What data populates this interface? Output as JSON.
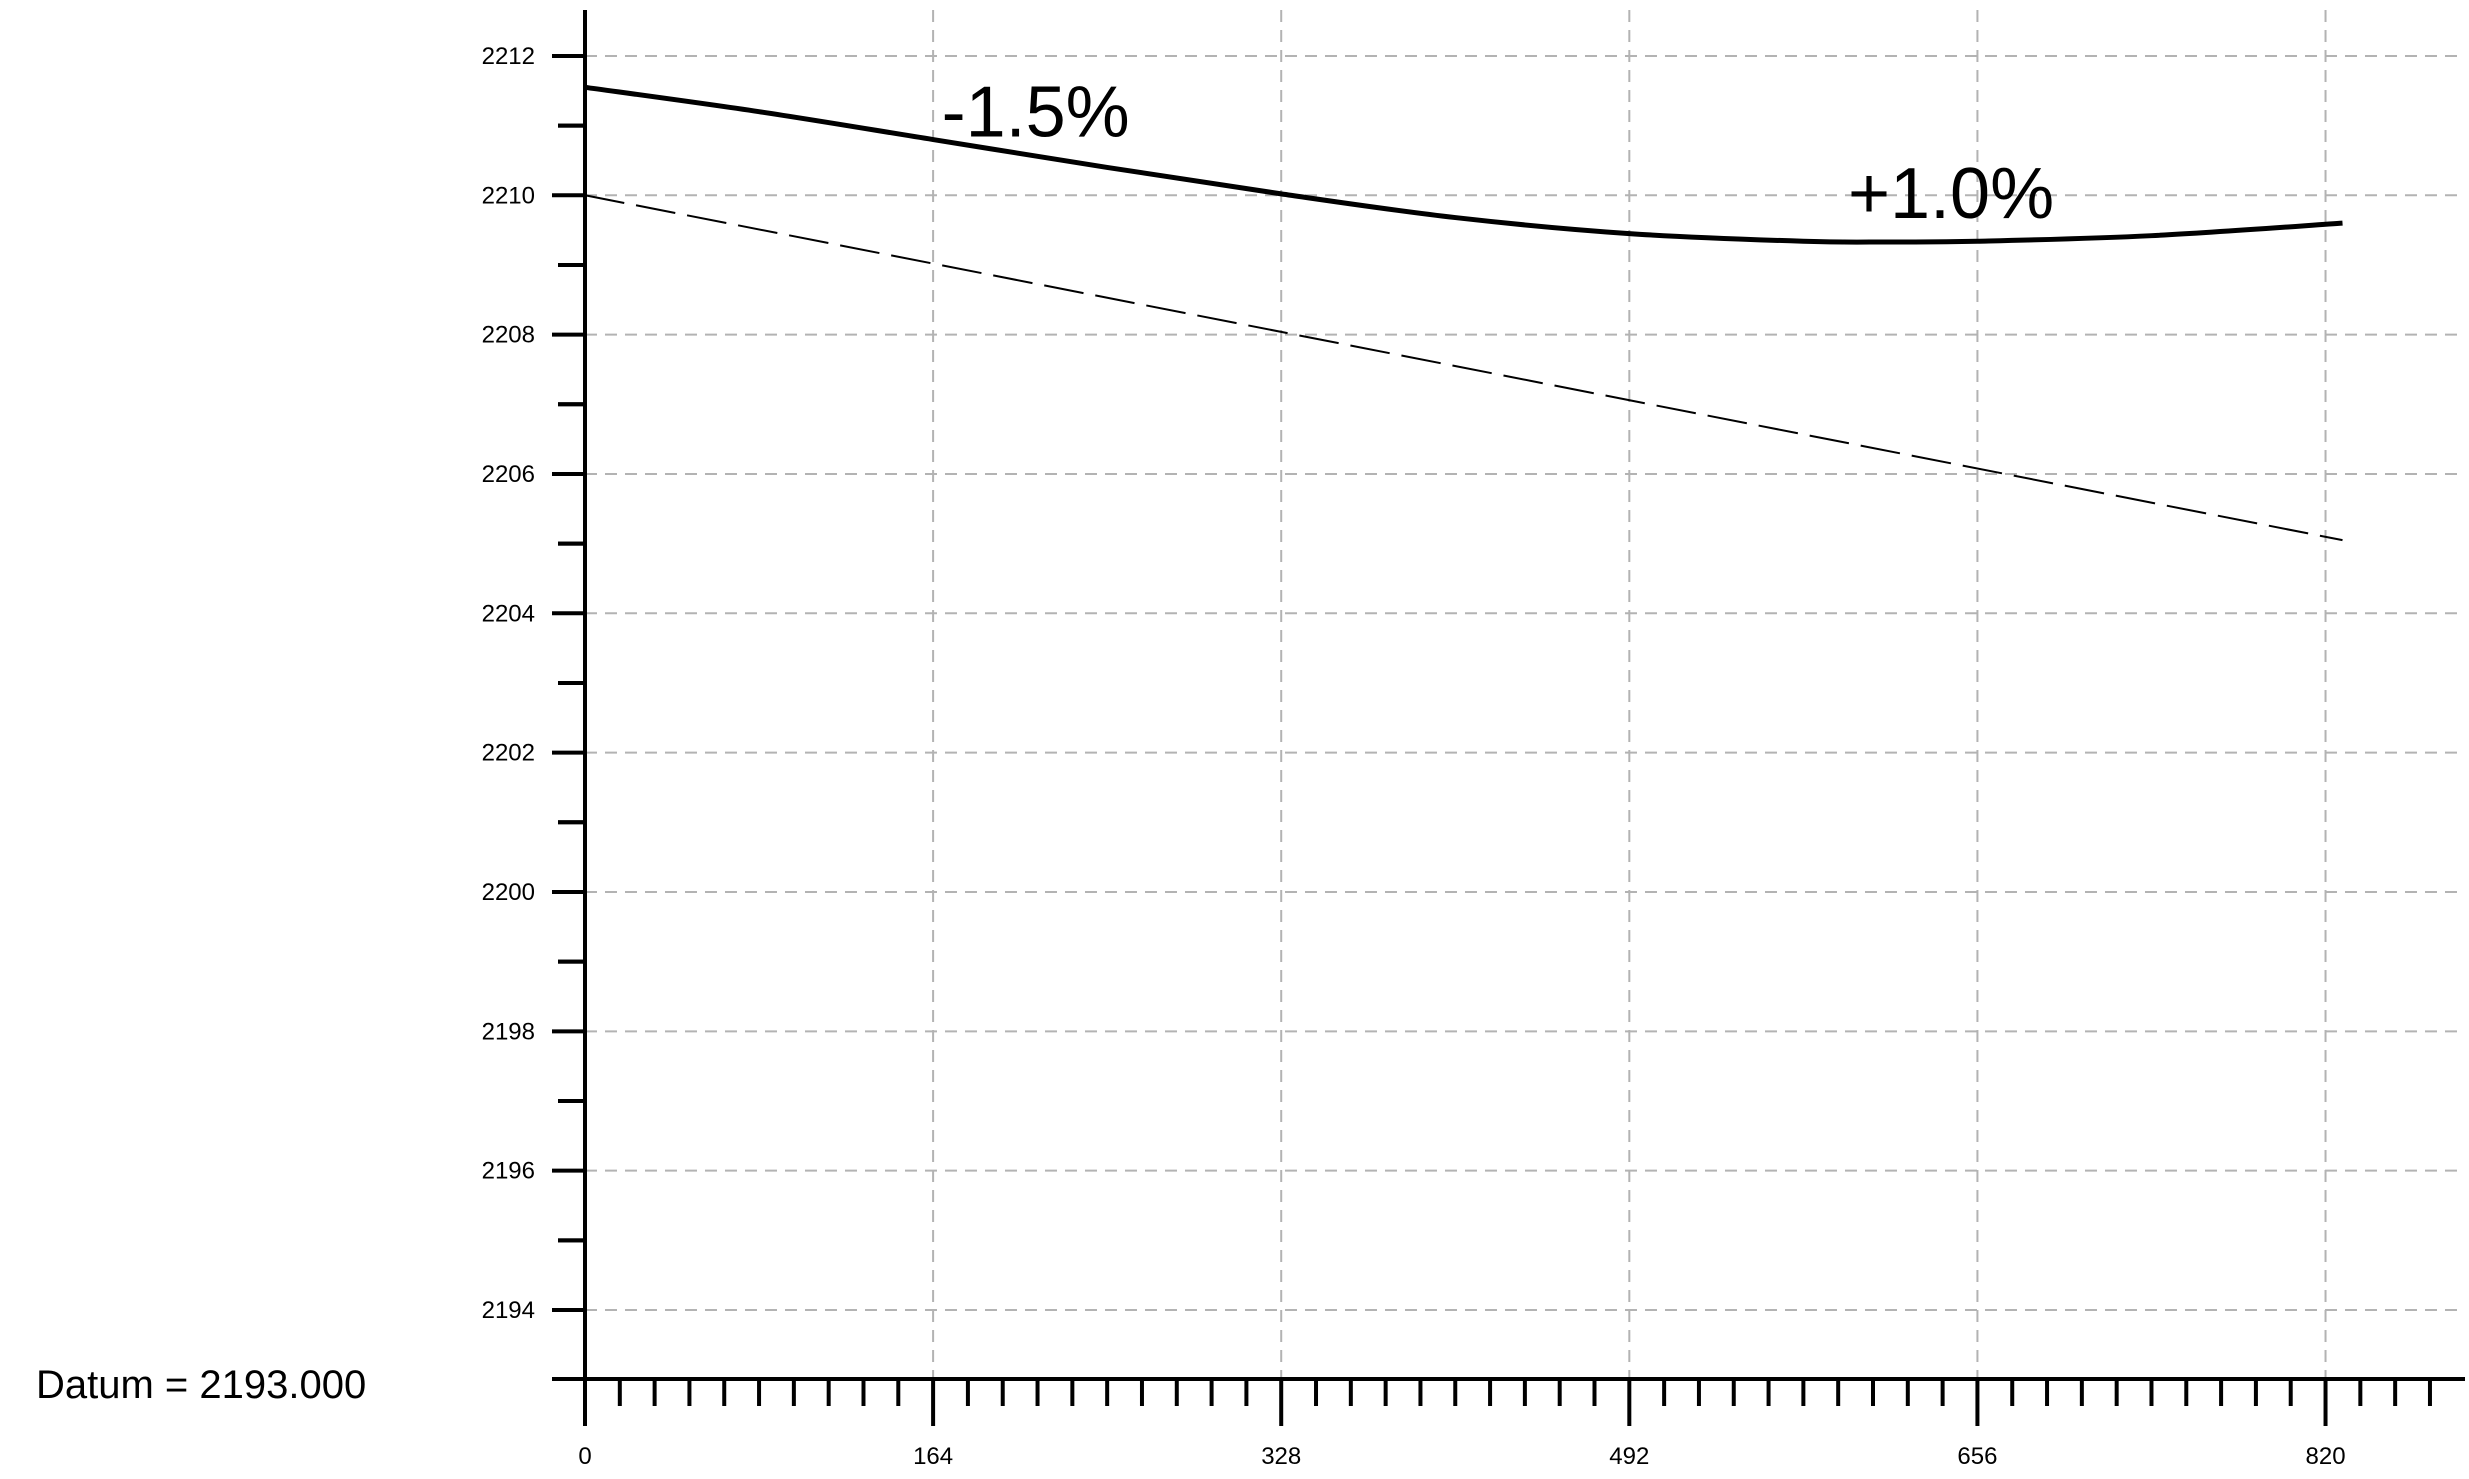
{
  "chart_data": {
    "type": "line",
    "title": "",
    "xlabel": "",
    "ylabel": "",
    "xlim": [
      0,
      885
    ],
    "ylim": [
      2193,
      2212.7
    ],
    "x_ticks": [
      0,
      164,
      328,
      492,
      656,
      820
    ],
    "y_ticks": [
      2194,
      2196,
      2198,
      2200,
      2202,
      2204,
      2206,
      2208,
      2210,
      2212
    ],
    "grid": true,
    "datum_label": "Datum = 2193.000",
    "series": [
      {
        "style": "solid",
        "color": "#000000",
        "x": [
          0,
          82,
          164,
          246,
          328,
          410,
          492,
          574,
          615,
          656,
          738,
          828
        ],
        "y": [
          2211.55,
          2211.2,
          2210.8,
          2210.4,
          2210.02,
          2209.68,
          2209.45,
          2209.34,
          2209.33,
          2209.34,
          2209.42,
          2209.6
        ]
      },
      {
        "style": "dashed",
        "color": "#000000",
        "x": [
          0,
          828
        ],
        "y": [
          2210.0,
          2205.05
        ]
      }
    ],
    "annotations": [
      {
        "text": "-1.5%",
        "x": 168,
        "y": 2211.2
      },
      {
        "text": "+1.0%",
        "x": 595,
        "y": 2210.03
      }
    ]
  }
}
